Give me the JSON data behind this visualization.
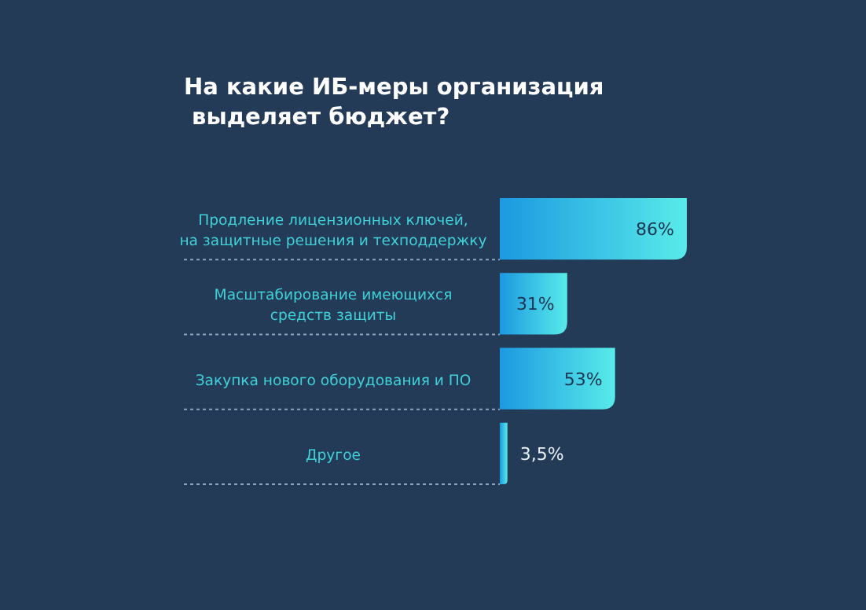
{
  "chart_data": {
    "type": "bar",
    "orientation": "horizontal",
    "title": "На какие ИБ-меры организация\n выделяет бюджет?",
    "categories": [
      "Продление лицензионных ключей,\nна защитные решения и техподдержку",
      "Масштабирование имеющихся\nсредств защиты",
      "Закупка нового оборудования и ПО",
      "Другое"
    ],
    "values": [
      86,
      31,
      53,
      3.5
    ],
    "value_labels": [
      "86%",
      "31%",
      "53%",
      "3,5%"
    ],
    "color": "#2fd6e2"
  }
}
